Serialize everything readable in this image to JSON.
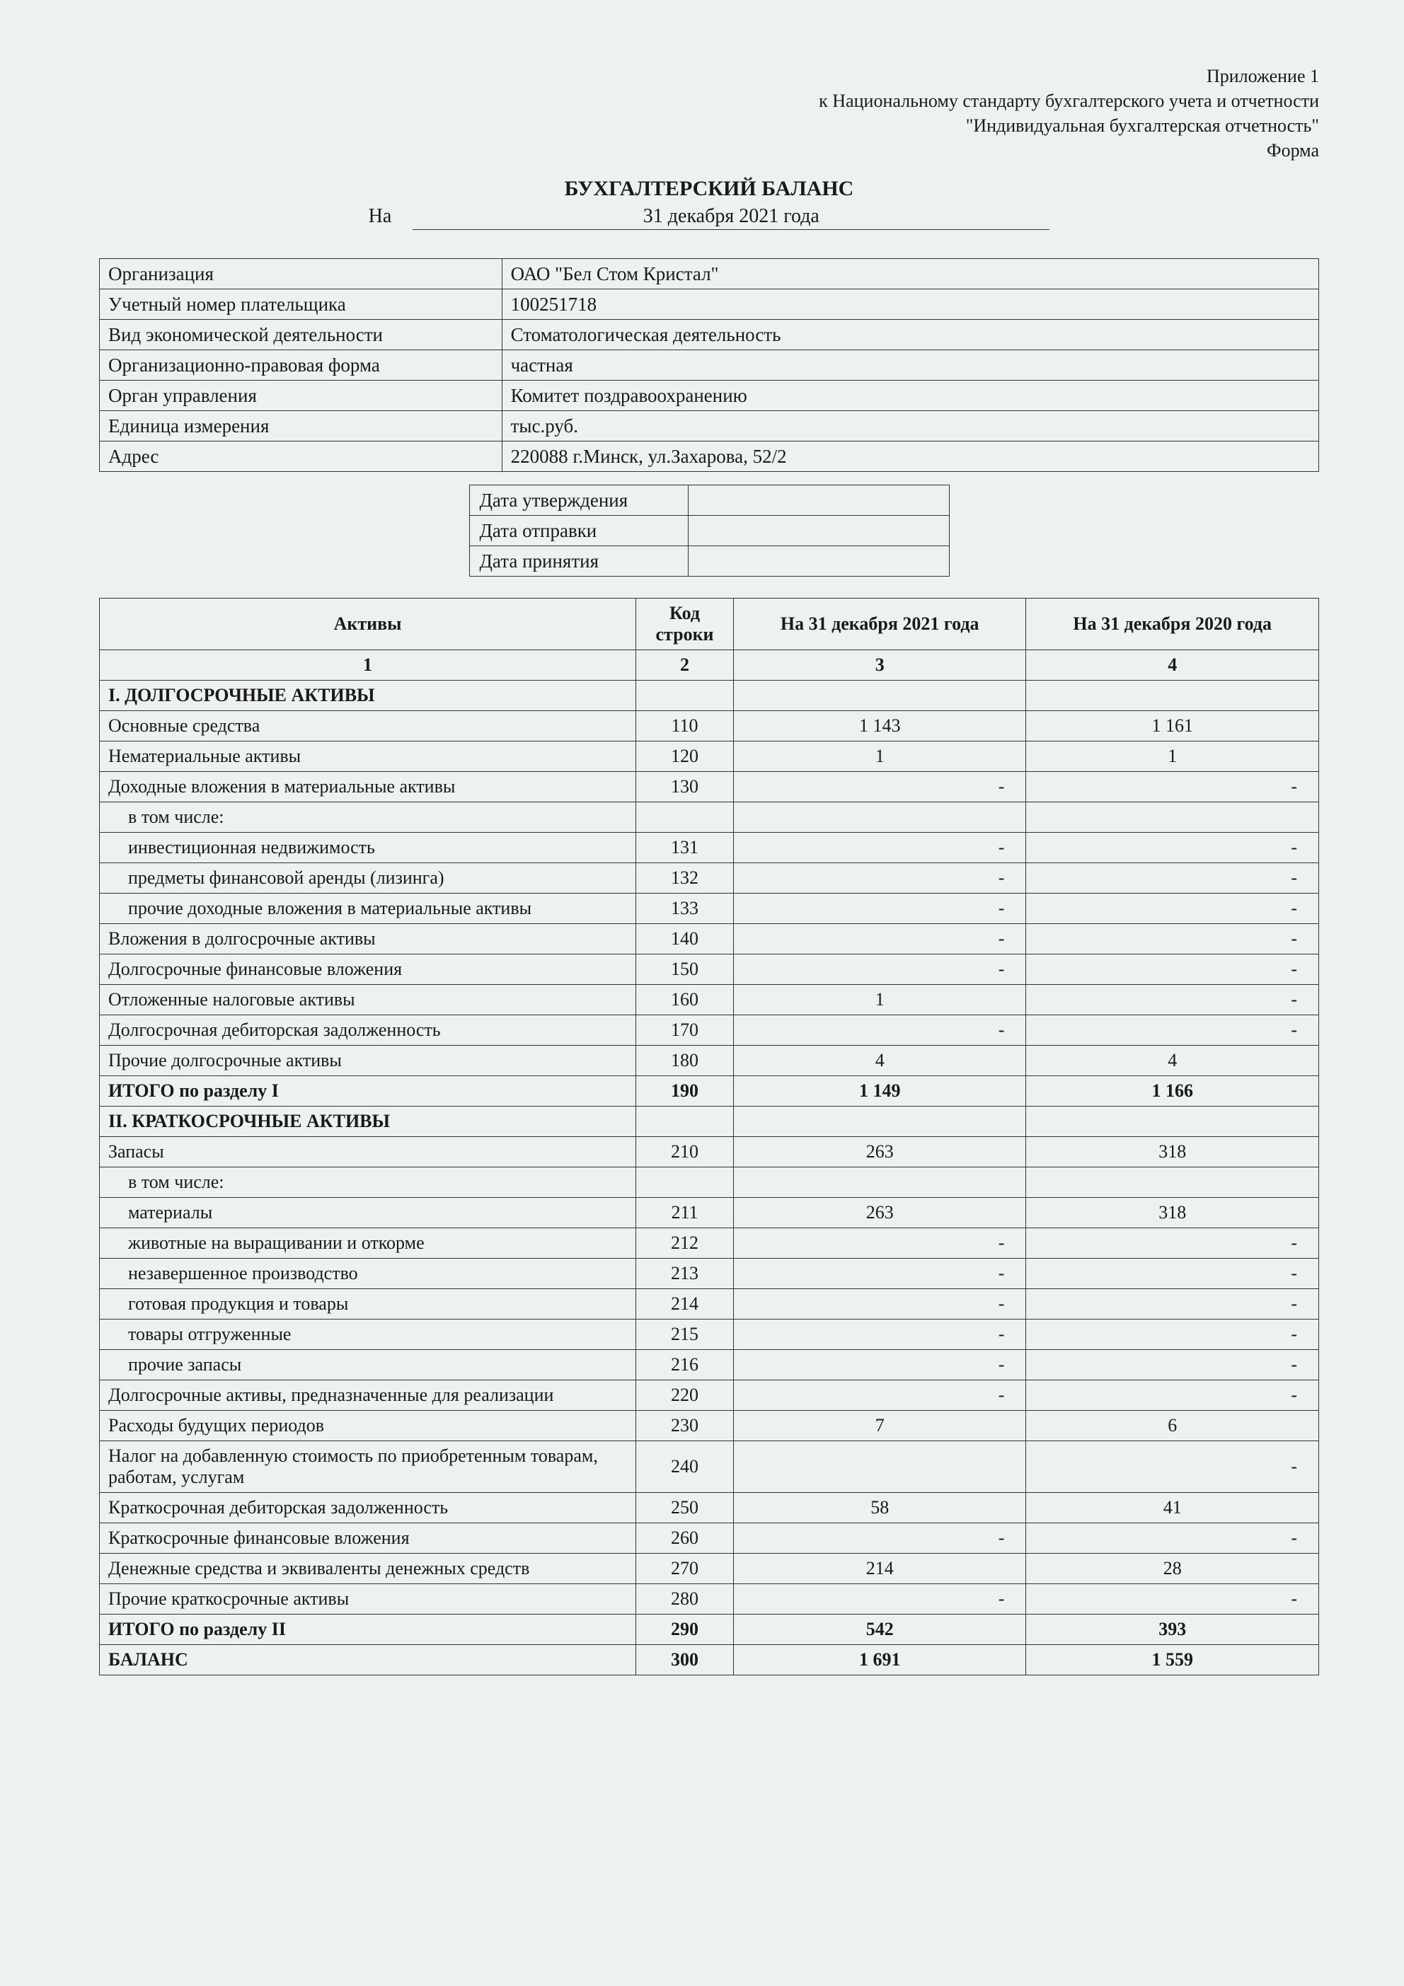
{
  "header": {
    "appendix": "Приложение 1",
    "line2": "к Национальному стандарту бухгалтерского учета и отчетности",
    "line3": "\"Индивидуальная бухгалтерская отчетность\"",
    "form": "Форма"
  },
  "title": {
    "main": "БУХГАЛТЕРСКИЙ БАЛАНС",
    "na": "На",
    "date": "31 декабря 2021 года"
  },
  "info": [
    {
      "label": "Организация",
      "value": "ОАО \"Бел Стом Кристал\""
    },
    {
      "label": "Учетный номер плательщика",
      "value": "100251718"
    },
    {
      "label": "Вид экономической деятельности",
      "value": "Стоматологическая деятельность"
    },
    {
      "label": "Организационно-правовая форма",
      "value": "частная"
    },
    {
      "label": "Орган управления",
      "value": "Комитет поздравоохранению"
    },
    {
      "label": "Единица измерения",
      "value": "тыс.руб."
    },
    {
      "label": "Адрес",
      "value": "220088 г.Минск, ул.Захарова, 52/2"
    }
  ],
  "dates": [
    {
      "label": "Дата утверждения",
      "value": ""
    },
    {
      "label": "Дата отправки",
      "value": ""
    },
    {
      "label": "Дата принятия",
      "value": ""
    }
  ],
  "table": {
    "columns": {
      "c1": "Активы",
      "c2": "Код строки",
      "c3": "На 31 декабря 2021 года",
      "c4": "На 31 декабря 2020 года"
    },
    "colnums": {
      "c1": "1",
      "c2": "2",
      "c3": "3",
      "c4": "4"
    },
    "rows": [
      {
        "type": "section",
        "name": "I. ДОЛГОСРОЧНЫЕ АКТИВЫ",
        "code": "",
        "v21": "",
        "v20": ""
      },
      {
        "name": "Основные средства",
        "code": "110",
        "v21": "1 143",
        "v20": "1 161"
      },
      {
        "name": "Нематериальные активы",
        "code": "120",
        "v21": "1",
        "v20": "1"
      },
      {
        "name": "Доходные вложения в материальные активы",
        "code": "130",
        "v21": "-",
        "v20": "-",
        "dash": true
      },
      {
        "name": "в том числе:",
        "indent": 1,
        "code": "",
        "v21": "",
        "v20": ""
      },
      {
        "name": "инвестиционная недвижимость",
        "indent": 1,
        "code": "131",
        "v21": "-",
        "v20": "-",
        "dash": true
      },
      {
        "name": "предметы финансовой аренды (лизинга)",
        "indent": 1,
        "code": "132",
        "v21": "-",
        "v20": "-",
        "dash": true
      },
      {
        "name": "прочие доходные вложения в материальные активы",
        "indent": 1,
        "code": "133",
        "v21": "-",
        "v20": "-",
        "dash": true
      },
      {
        "name": "Вложения в долгосрочные активы",
        "code": "140",
        "v21": "-",
        "v20": "-",
        "dash": true
      },
      {
        "name": "Долгосрочные финансовые вложения",
        "code": "150",
        "v21": "-",
        "v20": "-",
        "dash": true
      },
      {
        "name": "Отложенные налоговые активы",
        "code": "160",
        "v21": "1",
        "v20": "-",
        "v20dash": true
      },
      {
        "name": "Долгосрочная дебиторская задолженность",
        "code": "170",
        "v21": "-",
        "v20": "-",
        "dash": true
      },
      {
        "name": "Прочие долгосрочные активы",
        "code": "180",
        "v21": "4",
        "v20": "4"
      },
      {
        "type": "bold",
        "name": "ИТОГО по разделу I",
        "code": "190",
        "v21": "1 149",
        "v20": "1 166"
      },
      {
        "type": "section",
        "name": "II. КРАТКОСРОЧНЫЕ АКТИВЫ",
        "code": "",
        "v21": "",
        "v20": ""
      },
      {
        "name": "Запасы",
        "code": "210",
        "v21": "263",
        "v20": "318"
      },
      {
        "name": "в том числе:",
        "indent": 1,
        "code": "",
        "v21": "",
        "v20": ""
      },
      {
        "name": "материалы",
        "indent": 1,
        "code": "211",
        "v21": "263",
        "v20": "318"
      },
      {
        "name": "животные на выращивании и откорме",
        "indent": 1,
        "code": "212",
        "v21": "-",
        "v20": "-",
        "dash": true
      },
      {
        "name": "незавершенное производство",
        "indent": 1,
        "code": "213",
        "v21": "-",
        "v20": "-",
        "dash": true
      },
      {
        "name": "готовая продукция и товары",
        "indent": 1,
        "code": "214",
        "v21": "-",
        "v20": "-",
        "dash": true
      },
      {
        "name": "товары отгруженные",
        "indent": 1,
        "code": "215",
        "v21": "-",
        "v20": "-",
        "dash": true
      },
      {
        "name": "прочие запасы",
        "indent": 1,
        "code": "216",
        "v21": "-",
        "v20": "-",
        "dash": true
      },
      {
        "name": "Долгосрочные активы, предназначенные для реализации",
        "code": "220",
        "v21": "-",
        "v20": "-",
        "dash": true
      },
      {
        "name": "Расходы будущих периодов",
        "code": "230",
        "v21": "7",
        "v20": "6"
      },
      {
        "name": "Налог на добавленную стоимость по приобретенным товарам, работам, услугам",
        "code": "240",
        "v21": "",
        "v20": "-",
        "v20dash": true
      },
      {
        "name": "Краткосрочная дебиторская задолженность",
        "code": "250",
        "v21": "58",
        "v20": "41"
      },
      {
        "name": "Краткосрочные финансовые вложения",
        "code": "260",
        "v21": "-",
        "v20": "-",
        "dash": true
      },
      {
        "name": "Денежные средства и эквиваленты денежных средств",
        "code": "270",
        "v21": "214",
        "v20": "28"
      },
      {
        "name": "Прочие краткосрочные активы",
        "code": "280",
        "v21": "-",
        "v20": "-",
        "dash": true
      },
      {
        "type": "bold",
        "name": "ИТОГО по разделу II",
        "code": "290",
        "v21": "542",
        "v20": "393"
      },
      {
        "type": "bold",
        "name": "БАЛАНС",
        "code": "300",
        "v21": "1 691",
        "v20": "1 559"
      }
    ]
  }
}
